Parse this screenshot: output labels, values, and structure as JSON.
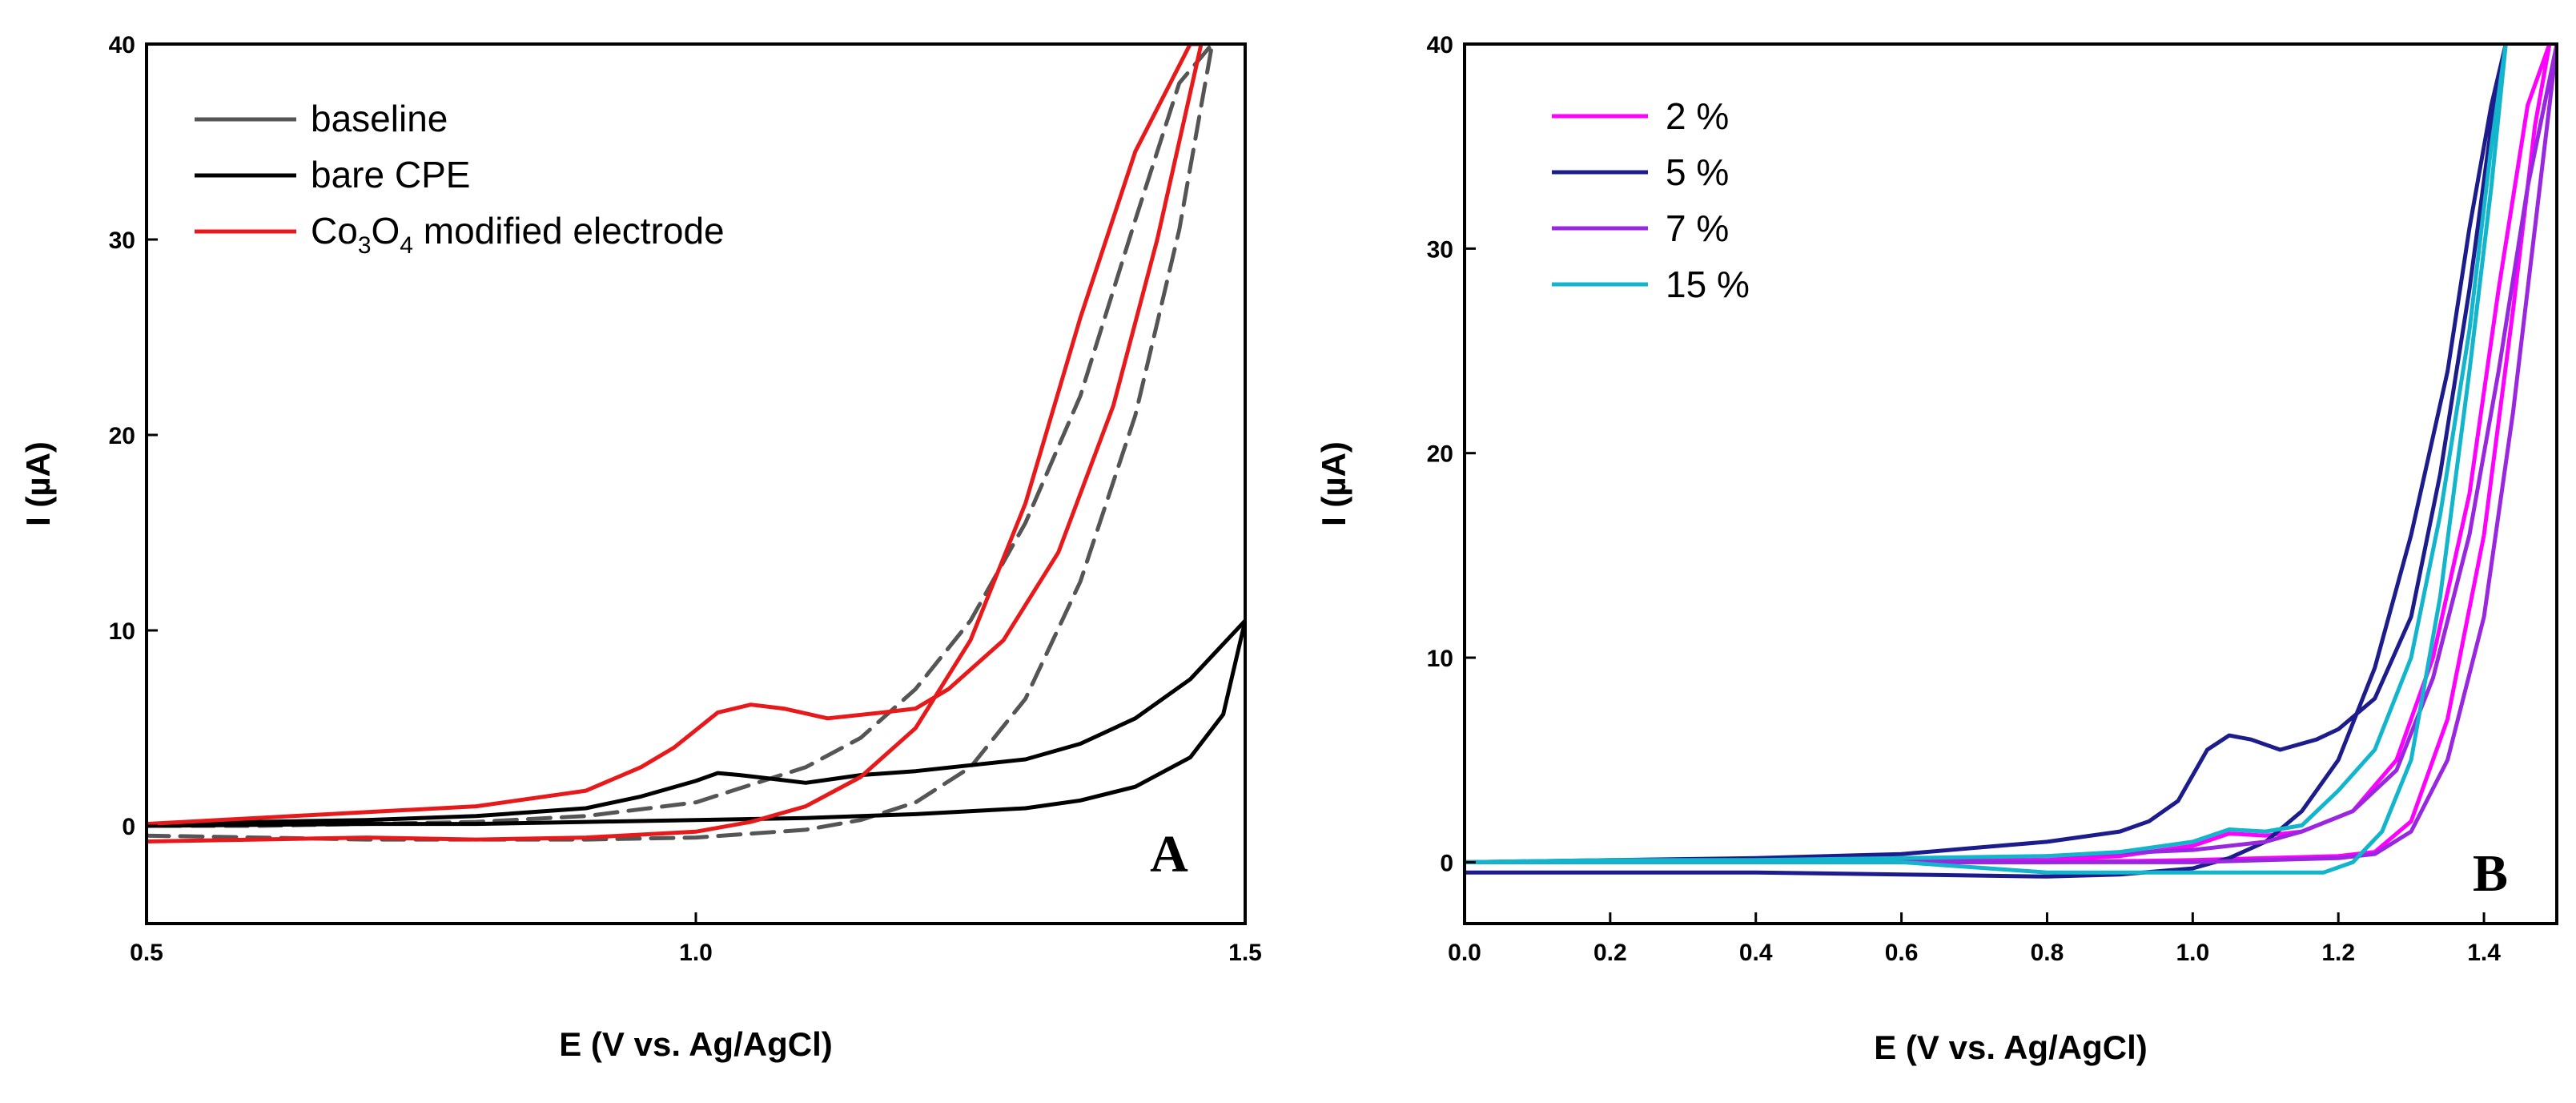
{
  "chart_data": [
    {
      "type": "line",
      "panel_label": "A",
      "xlabel": "E (V vs. Ag/AgCl)",
      "ylabel": "I (µA)",
      "xlim": [
        0.5,
        1.5
      ],
      "ylim": [
        -5,
        40
      ],
      "xticks": [
        0.5,
        1.0,
        1.5
      ],
      "xtick_labels": [
        "0.5",
        "1.0",
        "1.5"
      ],
      "yticks": [
        0,
        10,
        20,
        30,
        40
      ],
      "ytick_labels": [
        "0",
        "10",
        "20",
        "30",
        "40"
      ],
      "legend_position": "top-left",
      "series": [
        {
          "name": "baseline",
          "color": "#555555",
          "dashed": true,
          "x": [
            0.5,
            0.6,
            0.7,
            0.8,
            0.9,
            1.0,
            1.1,
            1.15,
            1.2,
            1.25,
            1.3,
            1.35,
            1.4,
            1.44,
            1.47,
            1.44,
            1.4,
            1.35,
            1.3,
            1.25,
            1.2,
            1.15,
            1.1,
            1.0,
            0.9,
            0.8,
            0.7,
            0.6,
            0.5
          ],
          "y": [
            -0.5,
            -0.6,
            -0.7,
            -0.7,
            -0.7,
            -0.6,
            -0.2,
            0.3,
            1.2,
            3.0,
            6.5,
            12.5,
            21.0,
            30.5,
            40,
            38.0,
            31.0,
            22.0,
            15.5,
            10.5,
            7.0,
            4.5,
            3.0,
            1.2,
            0.5,
            0.2,
            0.1,
            0.0,
            0.0
          ]
        },
        {
          "name": "bare CPE",
          "color": "#000000",
          "dashed": false,
          "x": [
            0.5,
            0.6,
            0.7,
            0.8,
            0.9,
            1.0,
            1.1,
            1.2,
            1.3,
            1.35,
            1.4,
            1.45,
            1.48,
            1.5,
            1.45,
            1.4,
            1.35,
            1.3,
            1.2,
            1.15,
            1.1,
            1.07,
            1.04,
            1.02,
            1.0,
            0.95,
            0.9,
            0.8,
            0.7,
            0.6,
            0.5
          ],
          "y": [
            0.0,
            0.05,
            0.1,
            0.1,
            0.2,
            0.3,
            0.4,
            0.6,
            0.9,
            1.3,
            2.0,
            3.5,
            5.7,
            10.5,
            7.5,
            5.5,
            4.2,
            3.4,
            2.8,
            2.6,
            2.2,
            2.4,
            2.6,
            2.7,
            2.3,
            1.5,
            0.9,
            0.5,
            0.3,
            0.2,
            0.1
          ]
        },
        {
          "name": "Co3O4 modified electrode",
          "color": "#e8191a",
          "dashed": false,
          "x": [
            0.5,
            0.6,
            0.7,
            0.8,
            0.9,
            1.0,
            1.05,
            1.1,
            1.15,
            1.2,
            1.25,
            1.3,
            1.35,
            1.4,
            1.45,
            1.46,
            1.42,
            1.38,
            1.33,
            1.28,
            1.23,
            1.2,
            1.17,
            1.12,
            1.08,
            1.05,
            1.02,
            0.98,
            0.95,
            0.9,
            0.8,
            0.7,
            0.6,
            0.5
          ],
          "y": [
            -0.8,
            -0.7,
            -0.6,
            -0.7,
            -0.6,
            -0.3,
            0.2,
            1.0,
            2.5,
            5.0,
            9.5,
            16.5,
            26.0,
            34.5,
            40,
            40,
            30.0,
            21.5,
            14.0,
            9.5,
            7.0,
            6.0,
            5.8,
            5.5,
            6.0,
            6.2,
            5.8,
            4.0,
            3.0,
            1.8,
            1.0,
            0.7,
            0.4,
            0.1
          ]
        }
      ],
      "legend": [
        {
          "label": "baseline",
          "color": "#555555"
        },
        {
          "label": "bare CPE",
          "color": "#000000"
        },
        {
          "label_main": "Co",
          "sub1": "3",
          "label_mid": "O",
          "sub2": "4",
          "label_tail": " modified electrode",
          "color": "#e8191a"
        }
      ]
    },
    {
      "type": "line",
      "panel_label": "B",
      "xlabel": "E (V vs. Ag/AgCl)",
      "ylabel": "I (µA)",
      "xlim": [
        0.0,
        1.5
      ],
      "ylim": [
        -3,
        40
      ],
      "xticks": [
        0.0,
        0.2,
        0.4,
        0.6,
        0.8,
        1.0,
        1.2,
        1.4
      ],
      "xtick_labels": [
        "0.0",
        "0.2",
        "0.4",
        "0.6",
        "0.8",
        "1.0",
        "1.2",
        "1.4"
      ],
      "yticks": [
        0,
        10,
        20,
        30,
        40
      ],
      "ytick_labels": [
        "0",
        "10",
        "20",
        "30",
        "40"
      ],
      "legend_position": "top-left",
      "series": [
        {
          "name": "2 %",
          "color": "#ff00ff",
          "x": [
            0.0,
            0.2,
            0.4,
            0.6,
            0.8,
            1.0,
            1.1,
            1.2,
            1.25,
            1.3,
            1.35,
            1.4,
            1.44,
            1.47,
            1.49,
            1.46,
            1.42,
            1.38,
            1.33,
            1.28,
            1.22,
            1.15,
            1.1,
            1.05,
            1.0,
            0.9,
            0.8,
            0.6,
            0.4,
            0.2,
            0.0
          ],
          "y": [
            0.0,
            0.0,
            0.0,
            0.0,
            0.0,
            0.1,
            0.2,
            0.3,
            0.5,
            2.0,
            7.0,
            16.0,
            27.0,
            36.0,
            40,
            37.0,
            28.0,
            18.0,
            10.0,
            5.0,
            2.5,
            1.5,
            1.3,
            1.4,
            0.8,
            0.3,
            0.1,
            0.0,
            0.0,
            0.0,
            0.0
          ]
        },
        {
          "name": "5 %",
          "color": "#1c1c8c",
          "x": [
            0.0,
            0.2,
            0.4,
            0.6,
            0.8,
            0.9,
            1.0,
            1.05,
            1.1,
            1.15,
            1.2,
            1.25,
            1.3,
            1.35,
            1.38,
            1.41,
            1.43,
            1.41,
            1.38,
            1.34,
            1.3,
            1.25,
            1.2,
            1.17,
            1.12,
            1.08,
            1.05,
            1.02,
            0.98,
            0.94,
            0.9,
            0.8,
            0.7,
            0.6,
            0.4,
            0.2,
            0.0
          ],
          "y": [
            -0.5,
            -0.5,
            -0.5,
            -0.6,
            -0.7,
            -0.6,
            -0.3,
            0.2,
            1.0,
            2.5,
            5.0,
            9.5,
            16.0,
            24.0,
            31.0,
            37.0,
            40,
            36.0,
            28.0,
            19.0,
            12.0,
            8.0,
            6.5,
            6.0,
            5.5,
            6.0,
            6.2,
            5.5,
            3.0,
            2.0,
            1.5,
            1.0,
            0.7,
            0.4,
            0.2,
            0.1,
            0.0
          ]
        },
        {
          "name": "7 %",
          "color": "#9a27e0",
          "x": [
            0.0,
            0.2,
            0.4,
            0.6,
            0.8,
            1.0,
            1.1,
            1.2,
            1.25,
            1.3,
            1.35,
            1.4,
            1.44,
            1.47,
            1.5,
            1.46,
            1.42,
            1.38,
            1.33,
            1.28,
            1.22,
            1.15,
            1.1,
            1.0,
            0.8,
            0.6,
            0.4,
            0.2,
            0.0
          ],
          "y": [
            0.0,
            0.0,
            0.0,
            0.0,
            0.0,
            0.0,
            0.1,
            0.2,
            0.4,
            1.5,
            5.0,
            12.0,
            22.0,
            31.0,
            40,
            33.0,
            24.0,
            16.0,
            9.0,
            4.5,
            2.5,
            1.5,
            1.0,
            0.6,
            0.3,
            0.1,
            0.0,
            0.0,
            0.0
          ]
        },
        {
          "name": "15 %",
          "color": "#12b5cc",
          "x": [
            0.0,
            0.2,
            0.4,
            0.6,
            0.8,
            1.0,
            1.1,
            1.18,
            1.22,
            1.26,
            1.3,
            1.34,
            1.38,
            1.41,
            1.43,
            1.41,
            1.38,
            1.34,
            1.3,
            1.25,
            1.2,
            1.15,
            1.1,
            1.05,
            1.0,
            0.9,
            0.8,
            0.6,
            0.4,
            0.2,
            0.0
          ],
          "y": [
            0.0,
            0.0,
            0.0,
            0.0,
            -0.5,
            -0.5,
            -0.5,
            -0.5,
            0.0,
            1.5,
            5.0,
            13.0,
            24.0,
            33.0,
            40,
            35.0,
            26.0,
            17.0,
            10.0,
            5.5,
            3.5,
            1.8,
            1.5,
            1.6,
            1.0,
            0.5,
            0.3,
            0.2,
            0.1,
            0.1,
            0.0
          ]
        }
      ],
      "legend": [
        {
          "label": "2 %",
          "color": "#ff00ff"
        },
        {
          "label": "5 %",
          "color": "#1c1c8c"
        },
        {
          "label": "7 %",
          "color": "#9a27e0"
        },
        {
          "label": "15 %",
          "color": "#12b5cc"
        }
      ]
    }
  ]
}
